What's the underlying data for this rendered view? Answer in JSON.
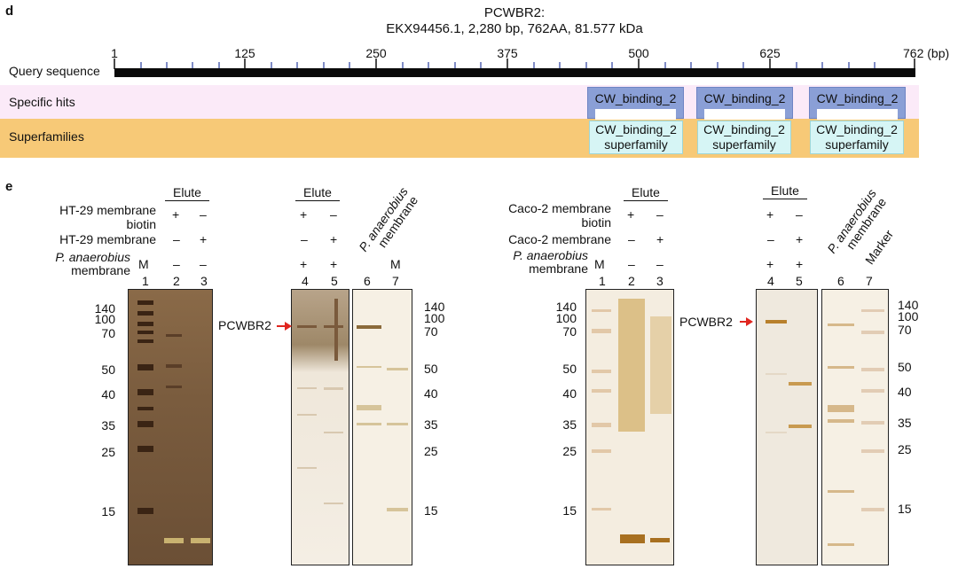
{
  "panel_d": {
    "letter": "d",
    "title_line1": "PCWBR2:",
    "title_line2": "EKX94456.1, 2,280 bp, 762AA, 81.577 kDa",
    "ticks": [
      "1",
      "125",
      "250",
      "375",
      "500",
      "625",
      "762 (bp)"
    ],
    "query_label": "Query sequence",
    "specific_label": "Specific hits",
    "super_label": "Superfamilies",
    "hits": [
      "CW_binding_2",
      "CW_binding_2",
      "CW_binding_2"
    ],
    "superfamilies": [
      {
        "line1": "CW_binding_2",
        "line2": "superfamily"
      },
      {
        "line1": "CW_binding_2",
        "line2": "superfamily"
      },
      {
        "line1": "CW_binding_2",
        "line2": "superfamily"
      }
    ]
  },
  "panel_e": {
    "letter": "e",
    "elute": "Elute",
    "left": {
      "row1_a": "HT-29 membrane",
      "row1_b": "biotin",
      "row2": "HT-29 membrane",
      "row3_a": "P. anaerobius",
      "row3_b": "membrane",
      "marker": "M",
      "pmem_a": "P. anaerobius",
      "pmem_b": "membrane",
      "lane_m2": "M"
    },
    "right": {
      "row1_a": "Caco-2 membrane",
      "row1_b": "biotin",
      "row2": "Caco-2 membrane",
      "row3_a": "P. anaerobius",
      "row3_b": "membrane",
      "marker": "M",
      "pmem_a": "P. anaerobius",
      "pmem_b": "membrane",
      "marker_word": "Marker"
    },
    "plus": "+",
    "minus": "–",
    "lanes": [
      "1",
      "2",
      "3",
      "4",
      "5",
      "6",
      "7"
    ],
    "mw_markers": [
      "140",
      "100",
      "70",
      "50",
      "40",
      "35",
      "25",
      "15"
    ],
    "protein_label": "PCWBR2"
  }
}
